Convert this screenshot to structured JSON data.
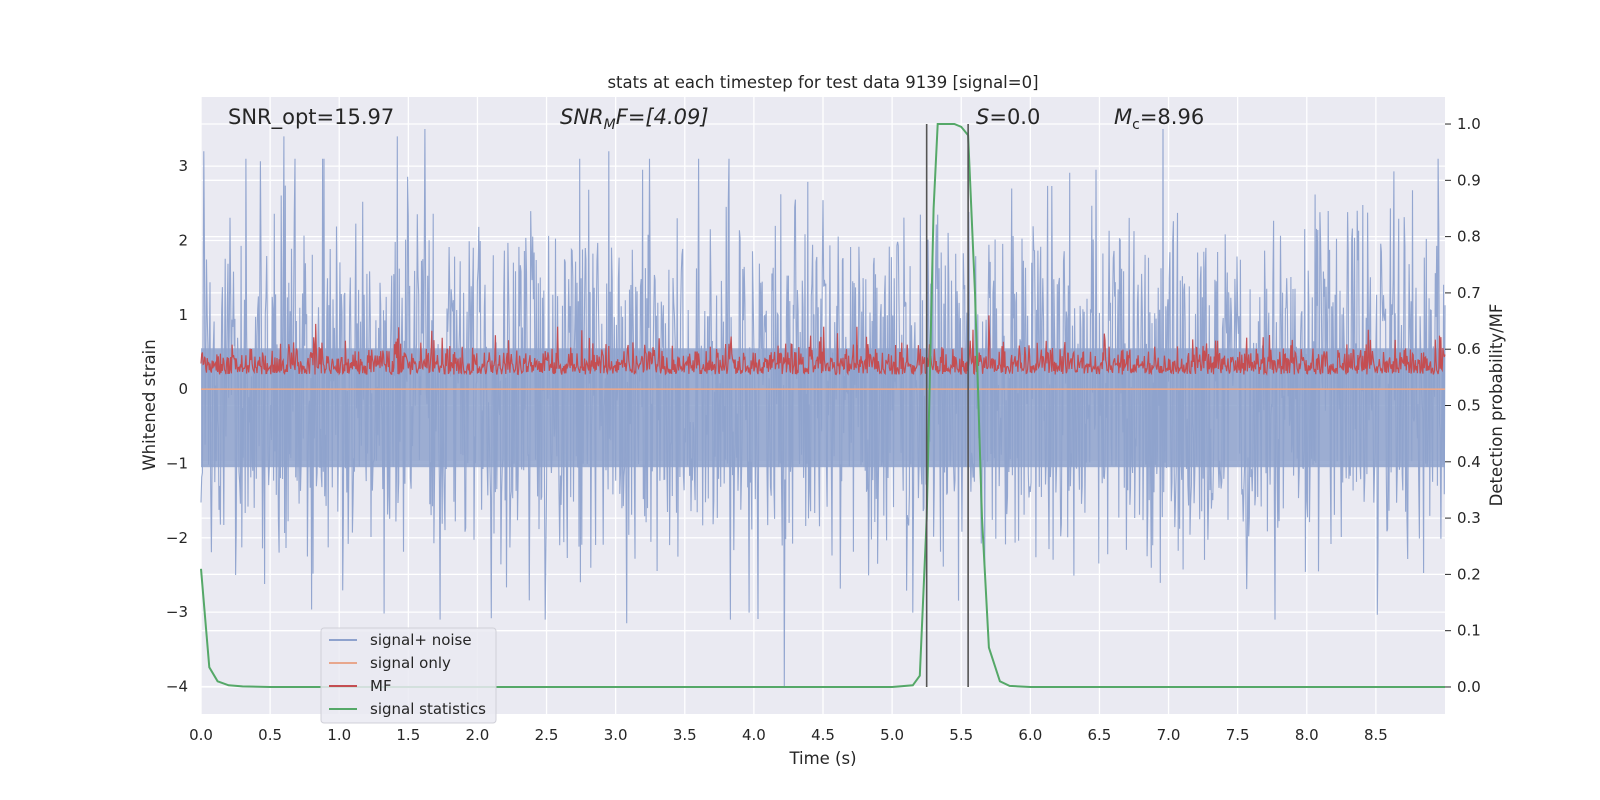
{
  "chart_data": {
    "type": "line",
    "title": "stats at each timestep for test data 9139 [signal=0]",
    "xlabel": "Time (s)",
    "ylabel_left": "Whitened strain",
    "ylabel_right": "Detection probability/MF",
    "xlim": [
      0.0,
      9.0
    ],
    "ylim_left": [
      -4.37,
      3.93
    ],
    "ylim_right": [
      -0.048,
      1.048
    ],
    "xticks": [
      "0.0",
      "0.5",
      "1.0",
      "1.5",
      "2.0",
      "2.5",
      "3.0",
      "3.5",
      "4.0",
      "4.5",
      "5.0",
      "5.5",
      "6.0",
      "6.5",
      "7.0",
      "7.5",
      "8.0",
      "8.5"
    ],
    "yticks_left": [
      "3",
      "2",
      "1",
      "0",
      "−1",
      "−2",
      "−3",
      "−4"
    ],
    "yticks_right": [
      "1.0",
      "0.9",
      "0.8",
      "0.7",
      "0.6",
      "0.5",
      "0.4",
      "0.3",
      "0.2",
      "0.1",
      "0.0"
    ],
    "grid": true,
    "legend_placement": "lower-left",
    "annotations": {
      "snr_opt": "SNR_opt=15.97",
      "snr_mf_sym": "SNR",
      "snr_mf_sub": "M",
      "snr_mf_rest": "F=[4.09]",
      "s_sym": "S",
      "s_rest": "=0.0",
      "mc_sym": "M",
      "mc_sub": "c",
      "mc_rest": "=8.96"
    },
    "vertical_lines_x": [
      5.25,
      5.55
    ],
    "series": [
      {
        "name": "signal+ noise",
        "color": "#8ea2cd",
        "axis": "left",
        "x_range": [
          0.0,
          9.0
        ],
        "peak_values": [
          {
            "x": 0.02,
            "y": 3.2
          },
          {
            "x": 0.6,
            "y": 3.4
          },
          {
            "x": 1.42,
            "y": 3.4
          },
          {
            "x": 1.62,
            "y": 3.5
          },
          {
            "x": 2.95,
            "y": 3.2
          },
          {
            "x": 4.22,
            "y": -4.0
          },
          {
            "x": 3.08,
            "y": -3.15
          },
          {
            "x": 6.96,
            "y": 3.5
          },
          {
            "x": 8.95,
            "y": 3.1
          },
          {
            "x": 0.25,
            "y": -2.5
          }
        ],
        "typical_range": [
          -1.9,
          2.5
        ]
      },
      {
        "name": "signal only",
        "color": "#e8a78d",
        "axis": "left",
        "x": [
          0.0,
          9.0
        ],
        "values": [
          0.0,
          0.0
        ]
      },
      {
        "name": "MF",
        "color": "#c44e52",
        "axis": "right",
        "x_range": [
          0.0,
          9.0
        ],
        "typical_range": [
          0.53,
          0.62
        ],
        "peak_values": [
          {
            "x": 5.7,
            "y": 0.66
          },
          {
            "x": 0.83,
            "y": 0.645
          },
          {
            "x": 2.58,
            "y": 0.64
          }
        ]
      },
      {
        "name": "signal statistics",
        "color": "#55a868",
        "axis": "right",
        "x": [
          0.0,
          0.06,
          0.12,
          0.2,
          0.3,
          0.5,
          1.0,
          2.0,
          3.0,
          4.0,
          4.5,
          5.0,
          5.15,
          5.2,
          5.25,
          5.3,
          5.33,
          5.4,
          5.45,
          5.5,
          5.55,
          5.6,
          5.65,
          5.7,
          5.78,
          5.85,
          6.0,
          7.0,
          8.0,
          9.0
        ],
        "values": [
          0.21,
          0.035,
          0.01,
          0.003,
          0.001,
          0.0,
          0.0,
          0.0,
          0.0,
          0.0,
          0.0,
          0.0,
          0.003,
          0.02,
          0.3,
          0.85,
          1.0,
          1.0,
          1.0,
          0.995,
          0.98,
          0.7,
          0.3,
          0.07,
          0.01,
          0.002,
          0.0,
          0.0,
          0.0,
          0.0
        ]
      }
    ]
  },
  "colors": {
    "axes_bg": "#eaeaf2",
    "grid": "#ffffff",
    "vline": "#555555"
  }
}
